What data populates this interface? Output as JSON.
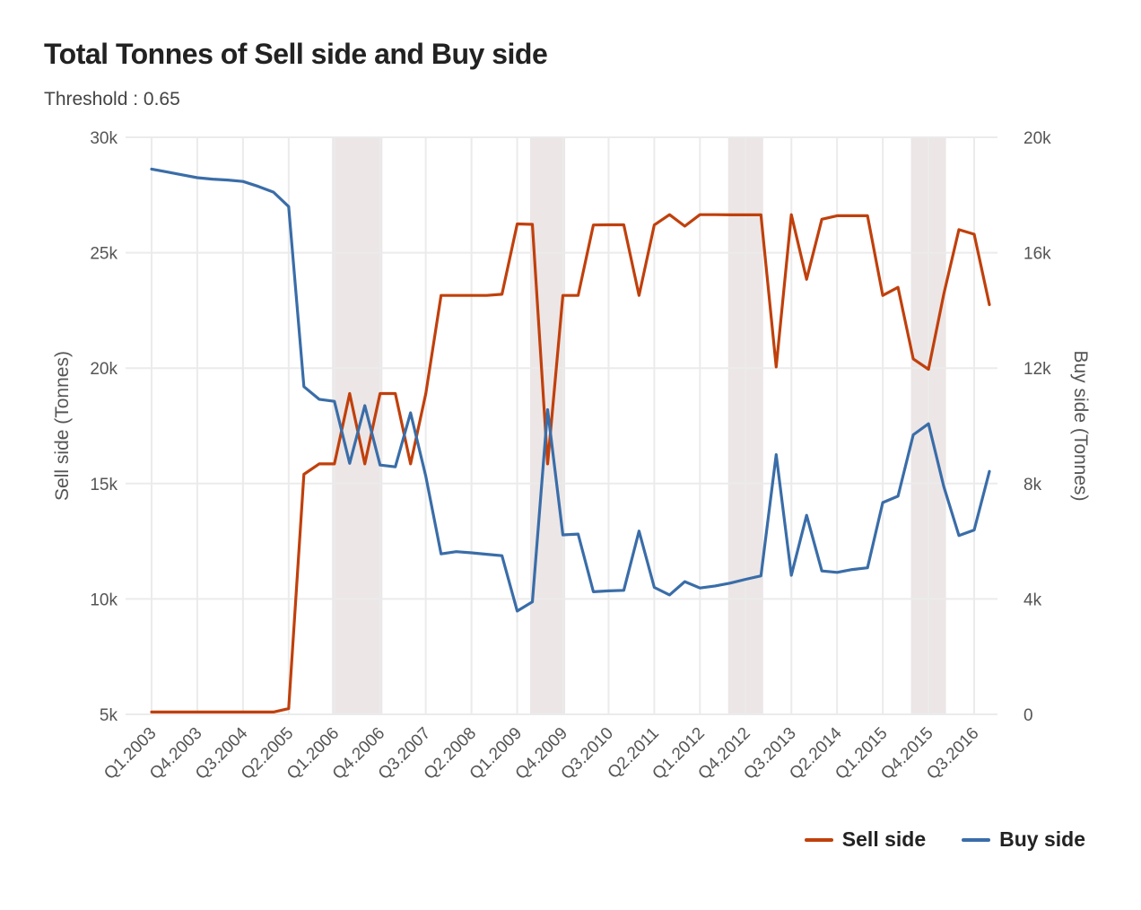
{
  "header": {
    "title": "Total Tonnes of Sell side and Buy side",
    "subtitle": "Threshold : 0.65"
  },
  "legend": {
    "placement": "bottom-right",
    "items": [
      {
        "label": "Sell side",
        "color": "#C0400C"
      },
      {
        "label": "Buy side",
        "color": "#3A6DA8"
      }
    ]
  },
  "chart_data": {
    "type": "line",
    "title": "Total Tonnes of Sell side and Buy side",
    "subtitle": "Threshold : 0.65",
    "xlabel": "",
    "ylabel": "Sell side (Tonnes)",
    "y2label": "Buy side (Tonnes)",
    "grid": true,
    "legend_placement": "bottom-right",
    "x": [
      "Q1.2003",
      "Q2.2003",
      "Q3.2003",
      "Q4.2003",
      "Q1.2004",
      "Q2.2004",
      "Q3.2004",
      "Q4.2004",
      "Q1.2005",
      "Q2.2005",
      "Q3.2005",
      "Q4.2005",
      "Q1.2006",
      "Q2.2006",
      "Q3.2006",
      "Q4.2006",
      "Q1.2007",
      "Q2.2007",
      "Q3.2007",
      "Q4.2007",
      "Q1.2008",
      "Q2.2008",
      "Q3.2008",
      "Q4.2008",
      "Q1.2009",
      "Q2.2009",
      "Q3.2009",
      "Q4.2009",
      "Q1.2010",
      "Q2.2010",
      "Q3.2010",
      "Q4.2010",
      "Q1.2011",
      "Q2.2011",
      "Q3.2011",
      "Q4.2011",
      "Q1.2012",
      "Q2.2012",
      "Q3.2012",
      "Q4.2012",
      "Q1.2013",
      "Q2.2013",
      "Q3.2013",
      "Q4.2013",
      "Q1.2014",
      "Q2.2014",
      "Q3.2014",
      "Q4.2014",
      "Q1.2015",
      "Q2.2015",
      "Q3.2015",
      "Q4.2015",
      "Q1.2016",
      "Q2.2016",
      "Q3.2016",
      "Q4.2016"
    ],
    "x_tick_labels": [
      "Q1.2003",
      "Q4.2003",
      "Q3.2004",
      "Q2.2005",
      "Q1.2006",
      "Q4.2006",
      "Q3.2007",
      "Q2.2008",
      "Q1.2009",
      "Q4.2009",
      "Q3.2010",
      "Q2.2011",
      "Q1.2012",
      "Q4.2012",
      "Q3.2013",
      "Q2.2014",
      "Q1.2015",
      "Q4.2015",
      "Q3.2016"
    ],
    "ylim": [
      5000,
      30000
    ],
    "yticks": [
      5000,
      10000,
      15000,
      20000,
      25000,
      30000
    ],
    "ytick_labels": [
      "5k",
      "10k",
      "15k",
      "20k",
      "25k",
      "30k"
    ],
    "y2lim": [
      0,
      20000
    ],
    "y2ticks": [
      0,
      4000,
      8000,
      12000,
      16000,
      20000
    ],
    "y2tick_labels": [
      "0",
      "4k",
      "8k",
      "12k",
      "16k",
      "20k"
    ],
    "shaded_ranges": [
      [
        "Q1.2006",
        "Q4.2006"
      ],
      [
        "Q2.2009",
        "Q4.2009"
      ],
      [
        "Q3.2012",
        "Q1.2013"
      ],
      [
        "Q3.2015",
        "Q1.2016"
      ]
    ],
    "series": [
      {
        "name": "Sell side",
        "axis": "left",
        "color": "#C0400C",
        "values": [
          5100,
          5100,
          5100,
          5100,
          5100,
          5100,
          5100,
          5100,
          5100,
          5250,
          15400,
          15850,
          15850,
          18900,
          15850,
          18900,
          18900,
          15850,
          18900,
          23150,
          23150,
          23150,
          23150,
          23200,
          26250,
          26230,
          15850,
          23150,
          23150,
          26200,
          26210,
          26210,
          23150,
          26200,
          26650,
          26150,
          26650,
          26650,
          26640,
          26640,
          26640,
          20050,
          26650,
          23850,
          26450,
          26600,
          26600,
          26600,
          23150,
          23500,
          20400,
          19950,
          23200,
          26000,
          25800,
          22750
        ]
      },
      {
        "name": "Buy side",
        "axis": "right",
        "color": "#3A6DA8",
        "values": [
          18900,
          18800,
          18700,
          18600,
          18550,
          18520,
          18470,
          18300,
          18100,
          17600,
          11360,
          10920,
          10850,
          8700,
          10700,
          8640,
          8580,
          10450,
          8250,
          5560,
          5640,
          5600,
          5550,
          5500,
          3580,
          3900,
          10560,
          6220,
          6250,
          4250,
          4280,
          4300,
          6350,
          4400,
          4140,
          4600,
          4380,
          4450,
          4550,
          4680,
          4800,
          9000,
          4820,
          6900,
          4970,
          4920,
          5020,
          5080,
          7340,
          7560,
          9690,
          10070,
          7900,
          6200,
          6390,
          8420
        ]
      }
    ]
  }
}
